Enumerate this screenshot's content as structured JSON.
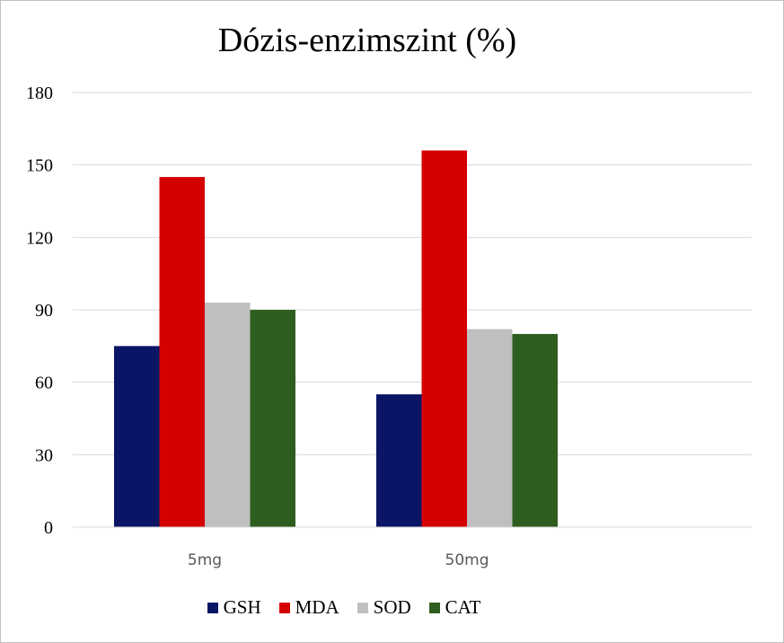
{
  "chart_data": {
    "type": "bar",
    "title": "Dózis-enzimszint (%)",
    "xlabel": "",
    "ylabel": "",
    "categories": [
      "5mg",
      "50mg"
    ],
    "ylim": [
      0,
      180
    ],
    "yticks": [
      "0",
      "30",
      "60",
      "90",
      "120",
      "150",
      "180"
    ],
    "grid": true,
    "legend_position": "bottom",
    "series": [
      {
        "name": "GSH",
        "color": "#0b1566",
        "values": [
          75,
          55
        ]
      },
      {
        "name": "MDA",
        "color": "#d40000",
        "values": [
          145,
          156
        ]
      },
      {
        "name": "SOD",
        "color": "#bfbfbf",
        "values": [
          93,
          82
        ]
      },
      {
        "name": "CAT",
        "color": "#2e5e1f",
        "values": [
          90,
          80
        ]
      }
    ]
  }
}
